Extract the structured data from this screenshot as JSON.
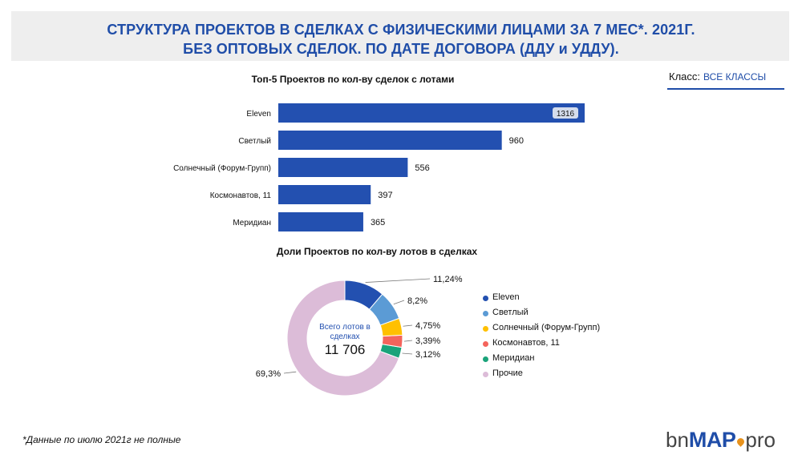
{
  "header": {
    "title_line1": "СТРУКТУРА ПРОЕКТОВ В СДЕЛКАХ С ФИЗИЧЕСКИМИ ЛИЦАМИ ЗА 7 МЕС*. 2021Г.",
    "title_line2": "БЕЗ ОПТОВЫХ СДЕЛОК. ПО ДАТЕ ДОГОВОРА (ДДУ и УДДУ)."
  },
  "class_filter": {
    "label": "Класс:",
    "value": "ВСЕ КЛАССЫ"
  },
  "colors": {
    "accent": "#1f4da8",
    "bar": "#2350b0",
    "eleven": "#2350b0",
    "svetly": "#5b9bd5",
    "solnechny": "#ffc000",
    "kosmonavtov": "#f4645c",
    "meridian": "#1aa37a",
    "prochie": "#dcbcd8"
  },
  "chart_data": [
    {
      "type": "bar",
      "orientation": "horizontal",
      "title": "Топ-5 Проектов по кол-ву сделок с лотами",
      "categories": [
        "Eleven",
        "Светлый",
        "Солнечный (Форум-Групп)",
        "Космонавтов, 11",
        "Меридиан"
      ],
      "values": [
        1316,
        960,
        556,
        397,
        365
      ],
      "data_labels": [
        "1316",
        "960",
        "556",
        "397",
        "365"
      ],
      "xlim": [
        0,
        1316
      ],
      "grid": false,
      "legend": "none"
    },
    {
      "type": "pie",
      "style": "donut",
      "title": "Доли Проектов по кол-ву лотов в сделках",
      "center_label": "Всего лотов в сделках",
      "center_value": "11 706",
      "labels": [
        "Eleven",
        "Светлый",
        "Солнечный (Форум-Групп)",
        "Космонавтов, 11",
        "Меридиан",
        "Прочие"
      ],
      "values": [
        11.24,
        8.2,
        4.75,
        3.39,
        3.12,
        69.3
      ],
      "data_labels": [
        "11,24%",
        "8,2%",
        "4,75%",
        "3,39%",
        "3,12%",
        "69,3%"
      ],
      "legend": "right"
    }
  ],
  "footnote": "*Данные по июлю 2021г не полные",
  "logo": {
    "bn": "bn",
    "map": "MAP",
    "pro": "pro"
  }
}
